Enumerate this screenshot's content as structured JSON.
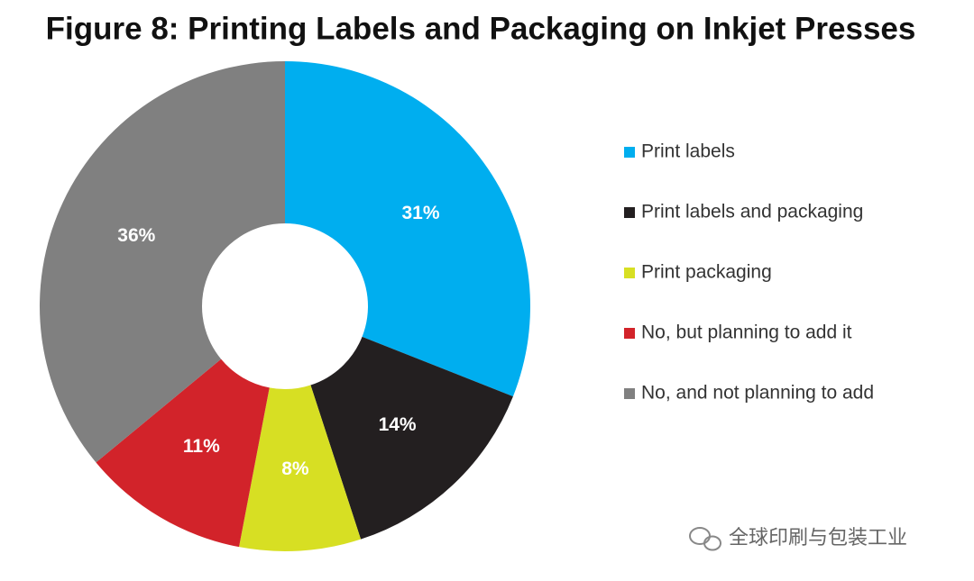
{
  "chart_data": {
    "type": "pie",
    "title": "Figure 8: Printing Labels and Packaging on Inkjet Presses",
    "categories": [
      "Print labels",
      "Print labels and packaging",
      "Print packaging",
      "No, but planning to add it",
      "No, and not planning to add"
    ],
    "values": [
      31,
      14,
      8,
      11,
      36
    ],
    "value_labels": [
      "31%",
      "14%",
      "8%",
      "11%",
      "36%"
    ],
    "colors": [
      "#00aeef",
      "#231f20",
      "#d7df23",
      "#d2232a",
      "#808080"
    ],
    "donut": true,
    "annotation": "全球印刷与包装工业"
  }
}
